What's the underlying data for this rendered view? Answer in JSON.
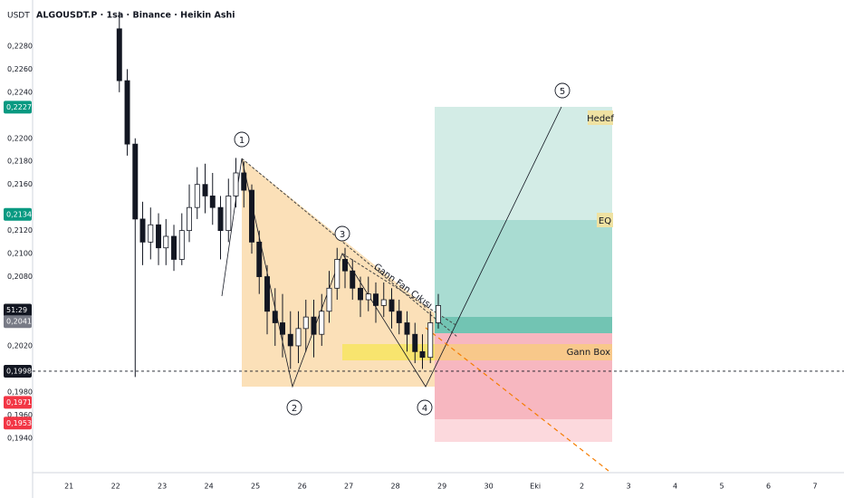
{
  "chart_data": {
    "type": "candlestick",
    "title": "ALGOUSDT.P · 1sa · Binance · Heikin Ashi",
    "y_label": "USDT",
    "x": [
      22.08,
      22.25,
      22.42,
      22.58,
      22.75,
      22.92,
      23.08,
      23.25,
      23.42,
      23.58,
      23.75,
      23.92,
      24.08,
      24.25,
      24.42,
      24.58,
      24.75,
      24.92,
      25.08,
      25.25,
      25.42,
      25.58,
      25.75,
      25.92,
      26.08,
      26.25,
      26.42,
      26.58,
      26.75,
      26.92,
      27.08,
      27.25,
      27.42,
      27.58,
      27.75,
      27.92,
      28.08,
      28.25,
      28.42,
      28.58,
      28.75,
      28.92
    ],
    "open": [
      0.2295,
      0.225,
      0.2195,
      0.213,
      0.211,
      0.2125,
      0.2105,
      0.2115,
      0.2095,
      0.212,
      0.214,
      0.216,
      0.215,
      0.214,
      0.212,
      0.215,
      0.217,
      0.2155,
      0.211,
      0.208,
      0.205,
      0.204,
      0.203,
      0.202,
      0.2035,
      0.2045,
      0.203,
      0.205,
      0.207,
      0.2095,
      0.2085,
      0.207,
      0.206,
      0.2065,
      0.2055,
      0.206,
      0.205,
      0.204,
      0.203,
      0.2015,
      0.201,
      0.204
    ],
    "high": [
      0.231,
      0.226,
      0.22,
      0.2145,
      0.214,
      0.2135,
      0.213,
      0.2125,
      0.2135,
      0.216,
      0.2175,
      0.2178,
      0.217,
      0.215,
      0.2165,
      0.2183,
      0.218,
      0.216,
      0.212,
      0.209,
      0.207,
      0.2065,
      0.205,
      0.205,
      0.206,
      0.206,
      0.2065,
      0.2085,
      0.2105,
      0.2105,
      0.2095,
      0.208,
      0.208,
      0.2075,
      0.2075,
      0.207,
      0.206,
      0.205,
      0.204,
      0.203,
      0.205,
      0.2065
    ],
    "low": [
      0.224,
      0.2185,
      0.1993,
      0.209,
      0.2095,
      0.209,
      0.209,
      0.2085,
      0.209,
      0.211,
      0.213,
      0.2135,
      0.2125,
      0.2095,
      0.211,
      0.214,
      0.214,
      0.21,
      0.2065,
      0.203,
      0.202,
      0.201,
      0.2,
      0.2005,
      0.2015,
      0.201,
      0.202,
      0.204,
      0.206,
      0.207,
      0.206,
      0.2045,
      0.205,
      0.204,
      0.2045,
      0.2035,
      0.203,
      0.2015,
      0.2005,
      0.2,
      0.2005,
      0.2035
    ],
    "close": [
      0.225,
      0.2195,
      0.213,
      0.211,
      0.2125,
      0.2105,
      0.2115,
      0.2095,
      0.212,
      0.214,
      0.216,
      0.215,
      0.214,
      0.212,
      0.215,
      0.217,
      0.2155,
      0.211,
      0.208,
      0.205,
      0.204,
      0.203,
      0.202,
      0.2035,
      0.2045,
      0.203,
      0.205,
      0.207,
      0.2095,
      0.2085,
      0.207,
      0.206,
      0.2065,
      0.2055,
      0.206,
      0.205,
      0.204,
      0.203,
      0.2015,
      0.201,
      0.204,
      0.2055
    ],
    "xlim": [
      20.22,
      37.62
    ],
    "ylim": [
      0.191,
      0.232
    ],
    "xticks": [
      21,
      22,
      23,
      24,
      25,
      26,
      27,
      28,
      29,
      30,
      {
        "value": 31,
        "label": "Eki"
      },
      {
        "value": 32,
        "label": "2"
      },
      {
        "value": 33,
        "label": "3"
      },
      {
        "value": 34,
        "label": "4"
      },
      {
        "value": 35,
        "label": "5"
      },
      {
        "value": 36,
        "label": "6"
      },
      {
        "value": 37,
        "label": "7"
      }
    ],
    "yticks": [
      {
        "value": 0.228,
        "label": "0,2280"
      },
      {
        "value": 0.226,
        "label": "0,2260"
      },
      {
        "value": 0.224,
        "label": "0,2240"
      },
      {
        "value": 0.22,
        "label": "0,2200"
      },
      {
        "value": 0.218,
        "label": "0,2180"
      },
      {
        "value": 0.216,
        "label": "0,2160"
      },
      {
        "value": 0.212,
        "label": "0,2120"
      },
      {
        "value": 0.21,
        "label": "0,2100"
      },
      {
        "value": 0.208,
        "label": "0,2080"
      },
      {
        "value": 0.202,
        "label": "0,2020"
      },
      {
        "value": 0.198,
        "label": "0,1980"
      },
      {
        "value": 0.196,
        "label": "0,1960"
      },
      {
        "value": 0.194,
        "label": "0,1940"
      }
    ],
    "price_labels": [
      {
        "value": 0.2227,
        "label": "0,2227",
        "color": "#089981"
      },
      {
        "value": 0.2134,
        "label": "0,2134",
        "color": "#089981"
      },
      {
        "value": 0.2051,
        "label": "51:29",
        "color": "#131722"
      },
      {
        "value": 0.2041,
        "label": "0,2041",
        "color": "#787b86"
      },
      {
        "value": 0.1998,
        "label": "0,1998",
        "color": "#131722"
      },
      {
        "value": 0.1971,
        "label": "0,1971",
        "color": "#f23645"
      },
      {
        "value": 0.1953,
        "label": "0,1953",
        "color": "#f23645"
      }
    ],
    "annotations": [
      "1",
      "2",
      "3",
      "4",
      "5",
      "Hedef",
      "EQ",
      "Gann Box",
      "Gann Fan Çıkışı"
    ]
  }
}
